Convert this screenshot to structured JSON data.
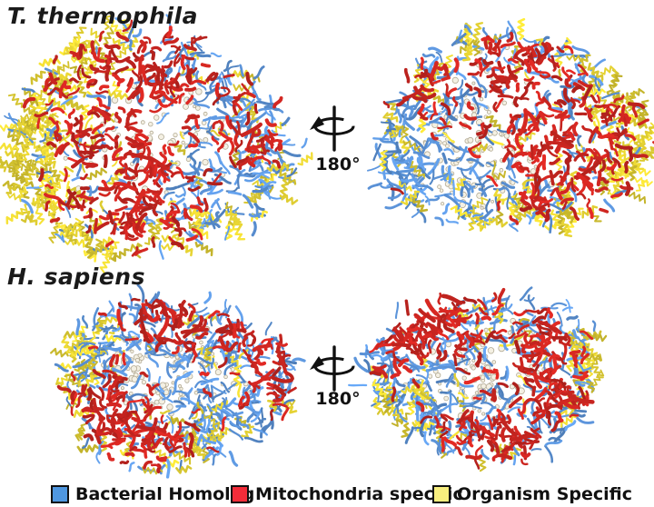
{
  "figure": {
    "background": "#ffffff",
    "sections": [
      {
        "title": "T. thermophila",
        "rotation_label": "180°"
      },
      {
        "title": "H. sapiens",
        "rotation_label": "180°"
      }
    ],
    "legend": {
      "items": [
        {
          "label": "Bacterial Homolog",
          "color": "#4f97e0"
        },
        {
          "label": "Mitochondria specific",
          "color": "#f22c39"
        },
        {
          "label": "Organism Specific",
          "color": "#f7ee7e"
        }
      ]
    },
    "structure_palette": {
      "bacterial_homolog": "#5b93d8",
      "mitochondria_specific": "#c92520",
      "organism_specific": "#e0ce32",
      "rrna_core_fill": "#f4f0e3",
      "rrna_core_outline": "#b3ab95",
      "icon_color": "#111111"
    }
  }
}
